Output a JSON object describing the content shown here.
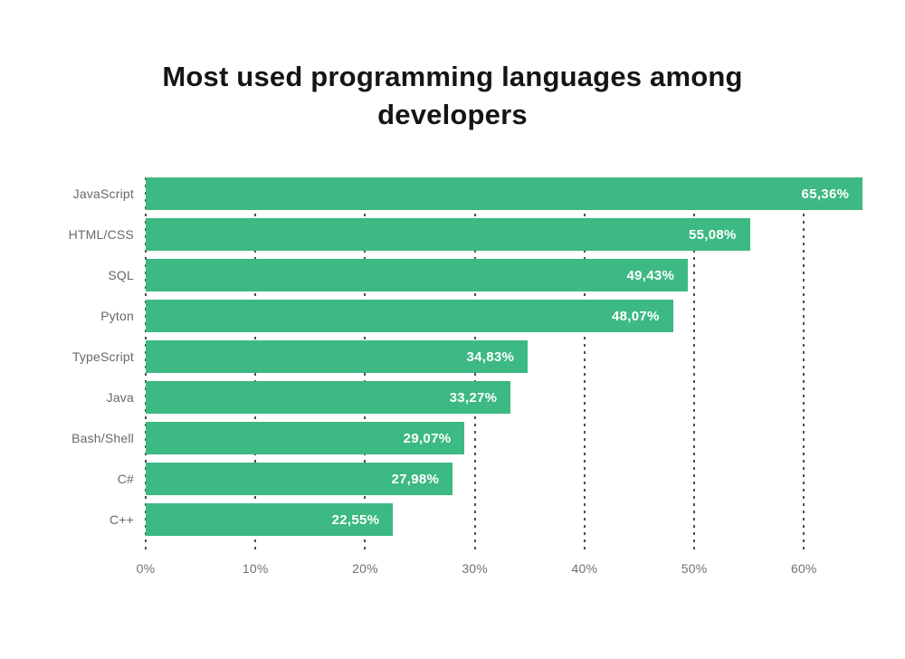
{
  "chart_data": {
    "type": "bar",
    "orientation": "horizontal",
    "title": "Most used programming languages among developers",
    "categories": [
      "JavaScript",
      "HTML/CSS",
      "SQL",
      "Pyton",
      "TypeScript",
      "Java",
      "Bash/Shell",
      "C#",
      "C++"
    ],
    "values": [
      65.36,
      55.08,
      49.43,
      48.07,
      34.83,
      33.27,
      29.07,
      27.98,
      22.55
    ],
    "value_labels": [
      "65,36%",
      "55,08%",
      "49,43%",
      "48,07%",
      "34,83%",
      "33,27%",
      "29,07%",
      "27,98%",
      "22,55%"
    ],
    "x_ticks": [
      {
        "value": 0,
        "label": "0%"
      },
      {
        "value": 10,
        "label": "10%"
      },
      {
        "value": 20,
        "label": "20%"
      },
      {
        "value": 30,
        "label": "30%"
      },
      {
        "value": 40,
        "label": "40%"
      },
      {
        "value": 50,
        "label": "50%"
      },
      {
        "value": 60,
        "label": "60%"
      }
    ],
    "xlim": [
      0,
      66
    ],
    "ylabel": "",
    "xlabel": "",
    "legend": "none",
    "grid": "vertical-dashed",
    "colors": {
      "bar": "#3db983",
      "gridline": "#4d4f52",
      "title": "#141518",
      "category_label": "#66696f",
      "tick_label": "#6e7177",
      "value_label": "#ffffff",
      "background": "#ffffff"
    }
  }
}
